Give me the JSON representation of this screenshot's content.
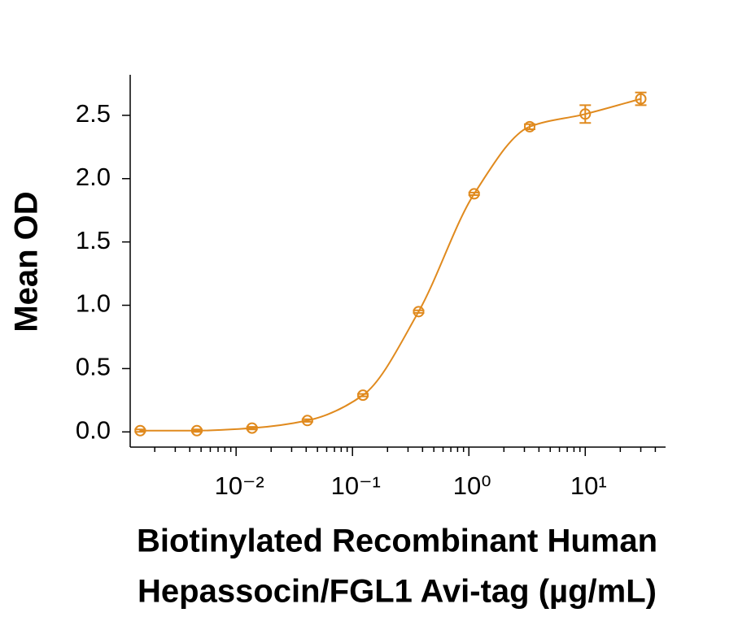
{
  "chart_data": {
    "type": "scatter",
    "ylabel": "Mean OD",
    "xlabel": [
      "Biotinylated Recombinant Human",
      "Hepassocin/FGL1 Avi-tag (µg/mL)"
    ],
    "x": [
      0.0015,
      0.0046,
      0.0137,
      0.041,
      0.123,
      0.37,
      1.11,
      3.33,
      10,
      30
    ],
    "series": [
      {
        "color": "#e08a1e",
        "values": [
          0.01,
          0.01,
          0.03,
          0.09,
          0.29,
          0.95,
          1.88,
          2.41,
          2.51,
          2.63
        ],
        "errors": [
          0.01,
          0.01,
          0.01,
          0.01,
          0.01,
          0.01,
          0.01,
          0.02,
          0.07,
          0.05
        ]
      }
    ],
    "xscale": "log",
    "xlim": [
      0.00123,
      49
    ],
    "ylim": [
      -0.12,
      2.82
    ],
    "yticks": [
      {
        "value": 0,
        "label": "0.0"
      },
      0.5,
      {
        "value": 1,
        "label": "1.0"
      },
      1.5,
      {
        "value": 2,
        "label": "2.0"
      },
      2.5
    ],
    "xticks": [
      {
        "value": 0.01,
        "label": "10⁻²"
      },
      {
        "value": 0.1,
        "label": "10⁻¹"
      },
      {
        "value": 1,
        "label": "10⁰"
      },
      {
        "value": 10,
        "label": "10¹"
      }
    ],
    "xminorticks": [
      0.002,
      0.003,
      0.004,
      0.005,
      0.006,
      0.007,
      0.008,
      0.009,
      0.02,
      0.03,
      0.04,
      0.05,
      0.06,
      0.07,
      0.08,
      0.09,
      0.2,
      0.3,
      0.4,
      0.5,
      0.6,
      0.7,
      0.8,
      0.9,
      2,
      3,
      4,
      5,
      6,
      7,
      8,
      9,
      20,
      30,
      40
    ]
  }
}
